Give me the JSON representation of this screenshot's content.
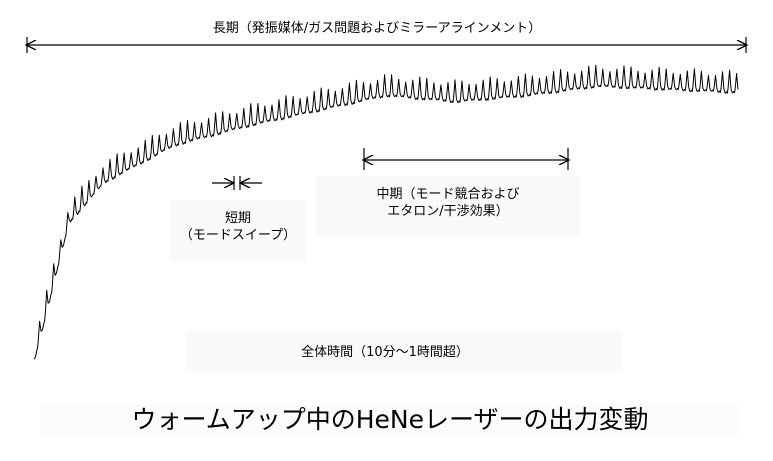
{
  "chart_data": {
    "type": "line",
    "title": "ウォームアップ中のHeNeレーザーの出力変動",
    "xlabel": "",
    "ylabel": "",
    "grid": false,
    "legend": "none",
    "annotations": {
      "long_term": "長期（発振媒体/ガス問題およびミラーアラインメント）",
      "short_term": [
        "短期",
        "（モードスイープ）"
      ],
      "mid_term": [
        "中期（モード競合および",
        "エタロン/干渉効果）"
      ],
      "total_time": "全体時間（10分〜1時間超）"
    },
    "series": [
      {
        "color": "#000000",
        "cycles": 100,
        "trend_x": [
          0,
          5,
          10,
          20,
          30,
          40,
          50,
          60,
          70,
          80,
          90,
          100
        ],
        "trend_y": [
          0.1,
          0.55,
          0.68,
          0.8,
          0.86,
          0.91,
          0.96,
          0.94,
          0.96,
          0.99,
          0.98,
          0.97
        ]
      }
    ]
  }
}
